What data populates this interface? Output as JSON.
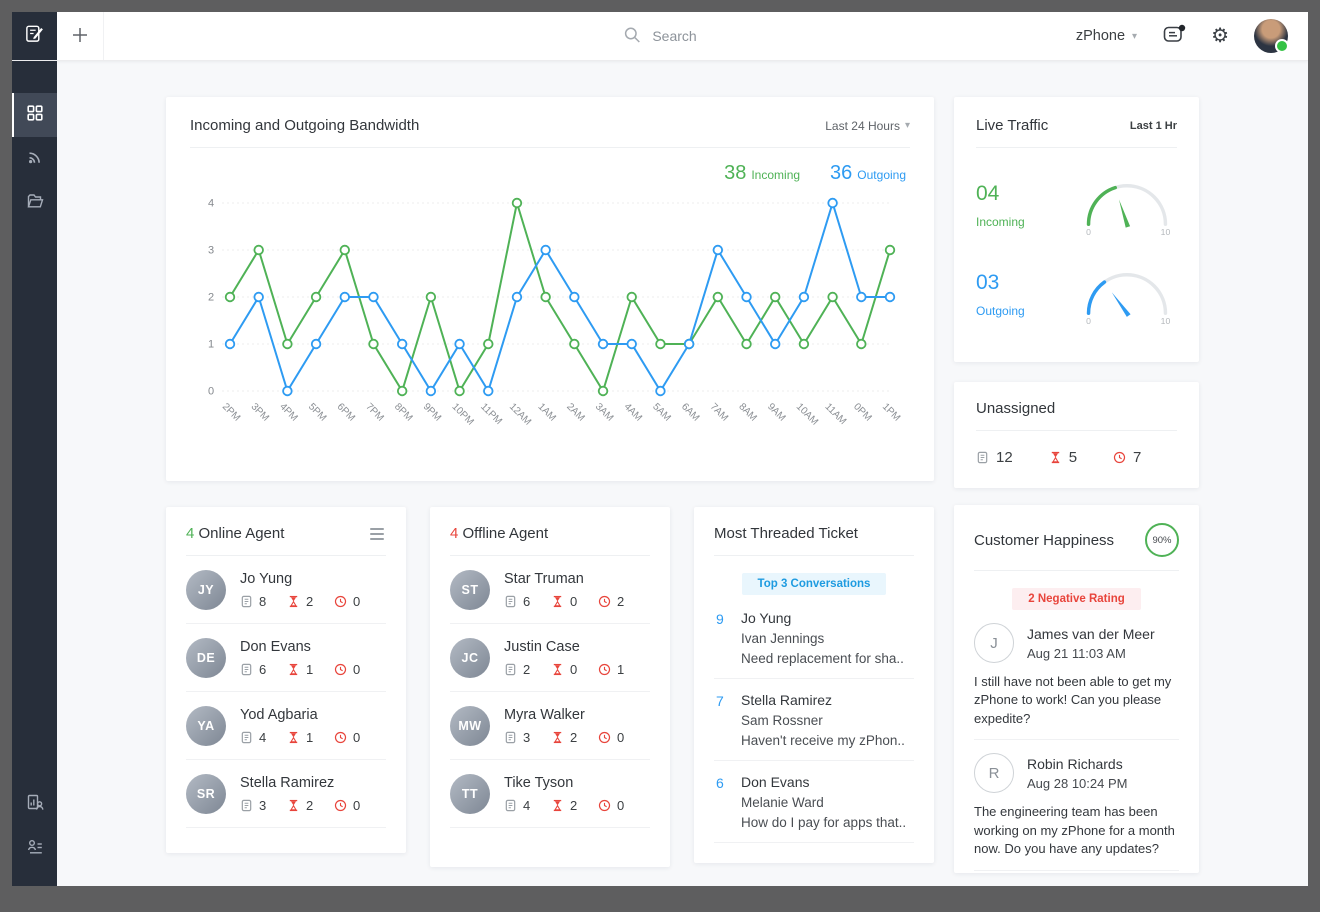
{
  "topbar": {
    "search_placeholder": "Search",
    "department": "zPhone"
  },
  "icons": {
    "compose-icon": "notepad with pencil",
    "plus-icon": "plus",
    "search-icon": "magnifier",
    "chevron-down-icon": "chevron down",
    "notification-icon": "message bubble with unread dot",
    "gear-icon": "gear",
    "grid-icon": "dashboard grid",
    "feeds-icon": "rss feed",
    "folder-icon": "open folder",
    "scorecard-icon": "report with person",
    "contacts-icon": "person with list",
    "hamburger-icon": "menu",
    "ticket-icon": "ticket outline",
    "hourglass-icon": "hourglass",
    "clock-icon": "clock"
  },
  "colors": {
    "green": "#4fb256",
    "blue": "#2e9bf2",
    "red": "#e8453c",
    "sidebar_bg": "#272e3a",
    "frame": "#5e5e5f"
  },
  "chart_card": {
    "title": "Incoming and Outgoing Bandwidth",
    "range_label": "Last 24 Hours",
    "totals": {
      "incoming": "38",
      "incoming_label": "Incoming",
      "outgoing": "36",
      "outgoing_label": "Outgoing"
    }
  },
  "chart_data": {
    "type": "line",
    "title": "Incoming and Outgoing Bandwidth",
    "x": [
      "2PM",
      "3PM",
      "4PM",
      "5PM",
      "6PM",
      "7PM",
      "8PM",
      "9PM",
      "10PM",
      "11PM",
      "12AM",
      "1AM",
      "2AM",
      "3AM",
      "4AM",
      "5AM",
      "6AM",
      "7AM",
      "8AM",
      "9AM",
      "10AM",
      "11AM",
      "0PM",
      "1PM"
    ],
    "series": [
      {
        "name": "Incoming",
        "color": "#4fb256",
        "total": 38,
        "values": [
          2,
          3,
          1,
          2,
          3,
          1,
          0,
          2,
          0,
          1,
          4,
          2,
          1,
          0,
          2,
          1,
          1,
          2,
          1,
          2,
          1,
          2,
          1,
          3
        ]
      },
      {
        "name": "Outgoing",
        "color": "#2e9bf2",
        "total": 36,
        "values": [
          1,
          2,
          0,
          1,
          2,
          2,
          1,
          0,
          1,
          0,
          2,
          3,
          2,
          1,
          1,
          0,
          1,
          3,
          2,
          1,
          2,
          4,
          2,
          2
        ]
      }
    ],
    "ylim": [
      0,
      4
    ],
    "yticks": [
      0,
      1,
      2,
      3,
      4
    ],
    "grid": "horizontal dashed",
    "legend_position": "top-right"
  },
  "live_traffic": {
    "title": "Live Traffic",
    "range_label": "Last 1 Hr",
    "gauges": [
      {
        "display": "04",
        "value": 4,
        "min": 0,
        "max": 10,
        "label": "Incoming",
        "color": "#4fb256"
      },
      {
        "display": "03",
        "value": 3,
        "min": 0,
        "max": 10,
        "label": "Outgoing",
        "color": "#2e9bf2"
      }
    ]
  },
  "unassigned": {
    "title": "Unassigned",
    "stats": [
      {
        "icon": "ticket-icon",
        "value": "12"
      },
      {
        "icon": "hourglass-icon",
        "value": "5"
      },
      {
        "icon": "clock-icon",
        "value": "7"
      }
    ]
  },
  "online_agents": {
    "count": "4",
    "title": "Online Agent",
    "rows": [
      {
        "name": "Jo Yung",
        "tickets": "8",
        "overdue": "2",
        "due": "0"
      },
      {
        "name": "Don Evans",
        "tickets": "6",
        "overdue": "1",
        "due": "0"
      },
      {
        "name": "Yod Agbaria",
        "tickets": "4",
        "overdue": "1",
        "due": "0"
      },
      {
        "name": "Stella Ramirez",
        "tickets": "3",
        "overdue": "2",
        "due": "0"
      }
    ]
  },
  "offline_agents": {
    "count": "4",
    "title": "Offline Agent",
    "rows": [
      {
        "name": "Star Truman",
        "tickets": "6",
        "overdue": "0",
        "due": "2"
      },
      {
        "name": "Justin Case",
        "tickets": "2",
        "overdue": "0",
        "due": "1"
      },
      {
        "name": "Myra Walker",
        "tickets": "3",
        "overdue": "2",
        "due": "0"
      },
      {
        "name": "Tike Tyson",
        "tickets": "4",
        "overdue": "2",
        "due": "0"
      }
    ]
  },
  "most_threaded": {
    "title": "Most Threaded Ticket",
    "badge": "Top 3 Conversations",
    "rows": [
      {
        "threads": "9",
        "agent": "Jo Yung",
        "contact": "Ivan Jennings",
        "subject": "Need replacement for sha.."
      },
      {
        "threads": "7",
        "agent": "Stella Ramirez",
        "contact": "Sam Rossner",
        "subject": "Haven't receive my zPhon.."
      },
      {
        "threads": "6",
        "agent": "Don Evans",
        "contact": "Melanie Ward",
        "subject": "How do I pay for apps that.."
      }
    ]
  },
  "customer_happiness": {
    "title": "Customer Happiness",
    "score": "90%",
    "badge": "2 Negative Rating",
    "feedback": [
      {
        "initial": "J",
        "name": "James van der Meer",
        "date": "Aug 21 11:03 AM",
        "message": "I still have not been able to get my zPhone to work! Can you please expedite?"
      },
      {
        "initial": "R",
        "name": "Robin Richards",
        "date": "Aug 28 10:24 PM",
        "message": "The engineering team has been working on my zPhone for a month now. Do you have any updates?"
      }
    ]
  }
}
